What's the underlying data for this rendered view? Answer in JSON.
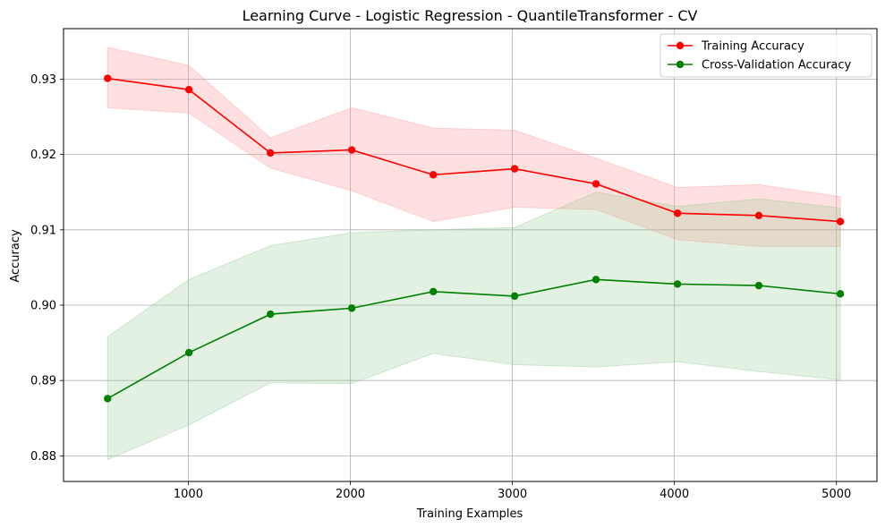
{
  "chart_data": {
    "type": "line",
    "title": "Learning Curve - Logistic Regression - QuantileTransformer - CV",
    "xlabel": "Training Examples",
    "ylabel": "Accuracy",
    "xlim": [
      230,
      5250
    ],
    "ylim": [
      0.8766,
      0.9367
    ],
    "xticks": [
      1000,
      2000,
      3000,
      4000,
      5000
    ],
    "yticks": [
      0.88,
      0.89,
      0.9,
      0.91,
      0.92,
      0.93
    ],
    "ytick_labels": [
      "0.88",
      "0.89",
      "0.90",
      "0.91",
      "0.92",
      "0.93"
    ],
    "grid": true,
    "legend_position": "top-right",
    "x": [
      502,
      1004,
      1507,
      2009,
      2512,
      3014,
      3516,
      4019,
      4521,
      5024
    ],
    "series": [
      {
        "name": "Training Accuracy",
        "color": "#ff0000",
        "band_color": "#ff9999",
        "values": [
          0.9301,
          0.9286,
          0.9202,
          0.9206,
          0.9173,
          0.9181,
          0.9161,
          0.9122,
          0.9119,
          0.9111
        ],
        "upper": [
          0.9342,
          0.9318,
          0.9222,
          0.9262,
          0.9235,
          0.9232,
          0.9195,
          0.9156,
          0.916,
          0.9144
        ],
        "lower": [
          0.9262,
          0.9255,
          0.9182,
          0.9152,
          0.9111,
          0.913,
          0.9127,
          0.9087,
          0.9078,
          0.9078
        ]
      },
      {
        "name": "Cross-Validation Accuracy",
        "color": "#008000",
        "band_color": "#90c890",
        "values": [
          0.8876,
          0.8937,
          0.8988,
          0.8996,
          0.9018,
          0.9012,
          0.9034,
          0.9028,
          0.9026,
          0.9015
        ],
        "upper": [
          0.8958,
          0.9034,
          0.9079,
          0.9096,
          0.91,
          0.9103,
          0.915,
          0.9131,
          0.9141,
          0.9129
        ],
        "lower": [
          0.8795,
          0.8841,
          0.8897,
          0.8896,
          0.8936,
          0.8921,
          0.8918,
          0.8925,
          0.8912,
          0.8901
        ]
      }
    ]
  }
}
